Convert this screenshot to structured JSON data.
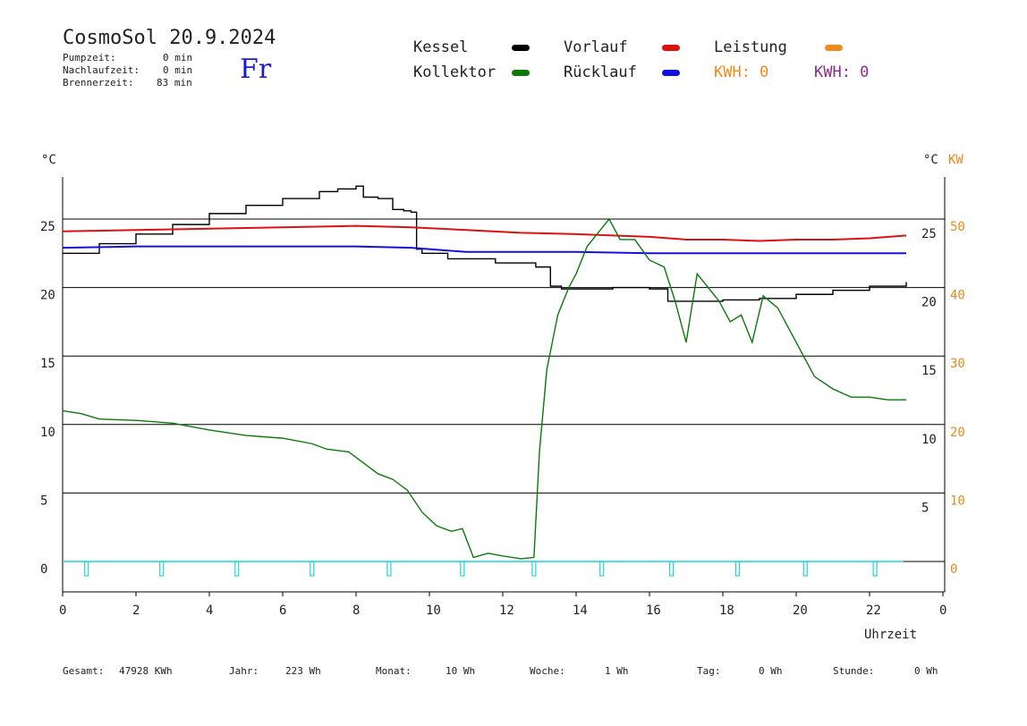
{
  "header": {
    "title": "CosmoSol 20.9.2024",
    "weekday": "Fr",
    "stats": [
      {
        "label": "Pumpzeit:",
        "value": "0 min"
      },
      {
        "label": "Nachlaufzeit:",
        "value": "0 min"
      },
      {
        "label": "Brennerzeit:",
        "value": "83 min"
      }
    ]
  },
  "legend": {
    "kessel": {
      "label": "Kessel",
      "color": "#000000"
    },
    "kollektor": {
      "label": "Kollektor",
      "color": "#0a7a0a"
    },
    "vorlauf": {
      "label": "Vorlauf",
      "color": "#dd1111"
    },
    "ruecklauf": {
      "label": "Rücklauf",
      "color": "#1111dd"
    },
    "leistung": {
      "label": "Leistung",
      "color": "#f08a1a"
    },
    "kwh_orange": "KWH: 0",
    "kwh_purple": "KWH: 0",
    "kwh_purple_color": "#8a2a8a"
  },
  "axes": {
    "left_unit": "°C",
    "right_unit": "°C",
    "right_unit2": "KW",
    "xlabel": "Uhrzeit"
  },
  "footer": [
    {
      "label": "Gesamt:",
      "value": "47928 KWh"
    },
    {
      "label": "Jahr:",
      "value": "223 Wh"
    },
    {
      "label": "Monat:",
      "value": "10 Wh"
    },
    {
      "label": "Woche:",
      "value": "1 Wh"
    },
    {
      "label": "Tag:",
      "value": "0 Wh"
    },
    {
      "label": "Stunde:",
      "value": "0 Wh"
    }
  ],
  "chart_data": {
    "type": "line",
    "x_unit": "hour",
    "xlim": [
      0,
      24
    ],
    "ylim": [
      -2,
      28
    ],
    "y2lim": [
      -4,
      56
    ],
    "x_ticks": [
      "0",
      "2",
      "4",
      "6",
      "8",
      "10",
      "12",
      "14",
      "16",
      "18",
      "20",
      "22",
      "0"
    ],
    "y_ticks_left": [
      0,
      5,
      10,
      15,
      20,
      25
    ],
    "y_ticks_right_c": [
      5,
      10,
      15,
      20,
      25
    ],
    "y_ticks_right_kw": [
      0,
      10,
      20,
      30,
      40,
      50
    ],
    "grid_y": [
      0,
      5,
      10,
      15,
      20,
      25
    ],
    "series": [
      {
        "name": "Kessel",
        "color": "#000000",
        "x": [
          0,
          1,
          2,
          3,
          4,
          5,
          6,
          7,
          7.5,
          8,
          8.2,
          8.6,
          9.0,
          9.3,
          9.5,
          9.65,
          9.8,
          10.5,
          11.0,
          11.8,
          12.0,
          12.9,
          13.3,
          13.6,
          14,
          15,
          16,
          16.5,
          17,
          18,
          19,
          20,
          21,
          22,
          23
        ],
        "y": [
          22.5,
          23.2,
          23.9,
          24.6,
          25.4,
          26.0,
          26.5,
          27.0,
          27.2,
          27.4,
          26.6,
          26.5,
          25.7,
          25.6,
          25.5,
          22.8,
          22.5,
          22.1,
          22.1,
          21.8,
          21.8,
          21.5,
          20.1,
          19.9,
          19.9,
          20.0,
          19.9,
          19.0,
          19.0,
          19.1,
          19.2,
          19.5,
          19.8,
          20.1,
          20.4
        ]
      },
      {
        "name": "Vorlauf",
        "color": "#dd1111",
        "x": [
          0,
          2,
          4,
          6,
          8,
          9.5,
          11,
          12.5,
          14,
          16,
          17,
          18,
          19,
          20,
          21,
          22,
          23
        ],
        "y": [
          24.1,
          24.2,
          24.3,
          24.4,
          24.5,
          24.4,
          24.2,
          24.0,
          23.9,
          23.7,
          23.5,
          23.5,
          23.4,
          23.5,
          23.5,
          23.6,
          23.8
        ],
        "name_label": "Vorlauf"
      },
      {
        "name": "Rücklauf",
        "color": "#1111dd",
        "x": [
          0,
          2,
          4,
          6,
          8,
          9.5,
          11,
          12.5,
          14,
          16,
          18,
          20,
          22,
          23
        ],
        "y": [
          22.9,
          23.0,
          23.0,
          23.0,
          23.0,
          22.9,
          22.6,
          22.6,
          22.6,
          22.5,
          22.5,
          22.5,
          22.5,
          22.5
        ]
      },
      {
        "name": "Kollektor",
        "color": "#0a7a0a",
        "x": [
          0,
          0.5,
          1,
          2,
          3,
          4,
          5,
          6,
          6.8,
          7.2,
          7.8,
          8.2,
          8.6,
          9.0,
          9.4,
          9.8,
          10.2,
          10.6,
          10.9,
          11.2,
          11.6,
          12.0,
          12.5,
          12.85,
          13.0,
          13.2,
          13.5,
          13.8,
          14.0,
          14.3,
          14.6,
          14.9,
          15.2,
          15.6,
          16.0,
          16.4,
          16.7,
          17.0,
          17.3,
          17.6,
          17.9,
          18.2,
          18.5,
          18.8,
          19.1,
          19.5,
          20.0,
          20.5,
          21.0,
          21.5,
          22.0,
          22.5,
          23.0
        ],
        "y": [
          11.0,
          10.8,
          10.4,
          10.3,
          10.1,
          9.6,
          9.2,
          9.0,
          8.6,
          8.2,
          8.0,
          7.2,
          6.4,
          6.0,
          5.2,
          3.6,
          2.6,
          2.2,
          2.4,
          0.3,
          0.6,
          0.4,
          0.2,
          0.3,
          8,
          14,
          18,
          20,
          21,
          23,
          24,
          25,
          23.5,
          23.5,
          22,
          21.5,
          19,
          16,
          21,
          20,
          19,
          17.5,
          18,
          16,
          19.4,
          18.5,
          16,
          13.5,
          12.6,
          12.0,
          12.0,
          11.8,
          11.8
        ]
      },
      {
        "name": "Leistung",
        "color": "#f08a1a",
        "axis": "right_kw",
        "x": [
          0,
          23
        ],
        "y": [
          0,
          0
        ]
      }
    ]
  }
}
